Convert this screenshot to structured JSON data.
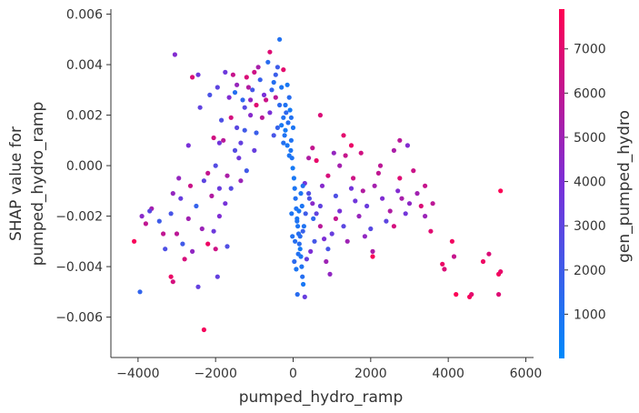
{
  "chart_data": {
    "type": "scatter",
    "title": "",
    "xlabel": "pumped_hydro_ramp",
    "ylabel_lines": [
      "SHAP value for",
      "pumped_hydro_ramp"
    ],
    "xlim": [
      -4700,
      6200
    ],
    "ylim": [
      -0.0076,
      0.0062
    ],
    "x_ticks": [
      -4000,
      -2000,
      0,
      2000,
      4000,
      6000
    ],
    "x_tick_labels": [
      "−4000",
      "−2000",
      "0",
      "2000",
      "4000",
      "6000"
    ],
    "y_ticks": [
      -0.006,
      -0.004,
      -0.002,
      0.0,
      0.002,
      0.004,
      0.006
    ],
    "y_tick_labels": [
      "−0.006",
      "−0.004",
      "−0.002",
      "0.000",
      "0.002",
      "0.004",
      "0.006"
    ],
    "grid": false,
    "colorbar": {
      "label": "gen_pumped_hydro",
      "min": 0,
      "max": 7900,
      "ticks": [
        1000,
        2000,
        3000,
        4000,
        5000,
        6000,
        7000
      ],
      "tick_labels": [
        "1000",
        "2000",
        "3000",
        "4000",
        "5000",
        "6000",
        "7000"
      ],
      "colormap": [
        "#008afb",
        "#ff0052"
      ]
    },
    "points": [
      [
        -3050,
        0.0044,
        4200
      ],
      [
        -2600,
        0.0035,
        6800
      ],
      [
        -2450,
        0.0036,
        3600
      ],
      [
        -2150,
        0.0028,
        2400
      ],
      [
        -1950,
        0.0031,
        3000
      ],
      [
        -2400,
        0.0023,
        3100
      ],
      [
        -1750,
        0.0037,
        3500
      ],
      [
        -1550,
        0.0036,
        6200
      ],
      [
        -1450,
        0.0032,
        4800
      ],
      [
        -1300,
        0.0026,
        1500
      ],
      [
        -1200,
        0.0035,
        6800
      ],
      [
        -1050,
        0.003,
        2200
      ],
      [
        -900,
        0.0039,
        5300
      ],
      [
        -850,
        0.0034,
        1800
      ],
      [
        -750,
        0.0028,
        3900
      ],
      [
        -650,
        0.0041,
        1300
      ],
      [
        -600,
        0.0045,
        6900
      ],
      [
        -500,
        0.0033,
        1200
      ],
      [
        -450,
        0.0027,
        5900
      ],
      [
        -400,
        0.0039,
        2000
      ],
      [
        -350,
        0.005,
        1100
      ],
      [
        -300,
        0.0031,
        900
      ],
      [
        -250,
        0.0038,
        7100
      ],
      [
        -200,
        0.0024,
        1000
      ],
      [
        -150,
        0.0032,
        800
      ],
      [
        -100,
        0.0027,
        1300
      ],
      [
        -50,
        0.0019,
        1100
      ],
      [
        0,
        0.0015,
        900
      ],
      [
        -80,
        0.0022,
        700
      ],
      [
        -130,
        0.0017,
        1200
      ],
      [
        -180,
        0.0021,
        1500
      ],
      [
        -220,
        0.0012,
        1000
      ],
      [
        -250,
        0.0009,
        1100
      ],
      [
        -300,
        0.0016,
        800
      ],
      [
        -60,
        0.0006,
        900
      ],
      [
        -30,
        0.0003,
        1000
      ],
      [
        -10,
        -0.0001,
        700
      ],
      [
        20,
        -0.0005,
        800
      ],
      [
        40,
        -0.0009,
        900
      ],
      [
        60,
        -0.0013,
        1100
      ],
      [
        80,
        -0.0017,
        1000
      ],
      [
        100,
        -0.0021,
        800
      ],
      [
        120,
        -0.0024,
        900
      ],
      [
        140,
        -0.0027,
        1200
      ],
      [
        160,
        -0.0031,
        1300
      ],
      [
        180,
        -0.0033,
        700
      ],
      [
        200,
        -0.0036,
        900
      ],
      [
        220,
        -0.004,
        1000
      ],
      [
        240,
        -0.0044,
        1200
      ],
      [
        260,
        -0.0047,
        800
      ],
      [
        30,
        -0.0038,
        1400
      ],
      [
        -20,
        -0.0028,
        1100
      ],
      [
        -40,
        -0.0019,
        900
      ],
      [
        110,
        -0.0051,
        1300
      ],
      [
        300,
        -0.0052,
        3300
      ],
      [
        -1800,
        0.001,
        5800
      ],
      [
        -1850,
        0.0018,
        2500
      ],
      [
        -1900,
        0.0009,
        3700
      ],
      [
        -2050,
        0.0011,
        6500
      ],
      [
        -1600,
        0.0019,
        6600
      ],
      [
        -1450,
        0.0015,
        2900
      ],
      [
        -1350,
        0.0009,
        3200
      ],
      [
        -1250,
        0.0014,
        2100
      ],
      [
        -1100,
        0.002,
        4300
      ],
      [
        -950,
        0.0013,
        1900
      ],
      [
        -2200,
        -0.0003,
        6100
      ],
      [
        -2000,
        0.0,
        2700
      ],
      [
        -1900,
        -0.0009,
        3400
      ],
      [
        -2100,
        -0.0012,
        5600
      ],
      [
        -2300,
        -0.0006,
        3000
      ],
      [
        -2500,
        -0.0016,
        1700
      ],
      [
        -2650,
        -0.0008,
        6300
      ],
      [
        -2700,
        -0.0021,
        5100
      ],
      [
        -2900,
        -0.0013,
        3300
      ],
      [
        -3100,
        -0.0011,
        4700
      ],
      [
        -3000,
        -0.0027,
        5900
      ],
      [
        -2850,
        -0.0031,
        2100
      ],
      [
        -2800,
        -0.0037,
        6700
      ],
      [
        -2600,
        -0.0034,
        4600
      ],
      [
        -2450,
        -0.0048,
        3200
      ],
      [
        -2200,
        -0.0031,
        7400
      ],
      [
        -2050,
        -0.0026,
        3500
      ],
      [
        -1900,
        -0.002,
        4100
      ],
      [
        -1750,
        -0.0015,
        3800
      ],
      [
        -1600,
        -0.0009,
        2800
      ],
      [
        -3300,
        -0.0033,
        2500
      ],
      [
        -3450,
        -0.0022,
        2000
      ],
      [
        -3650,
        -0.0017,
        5200
      ],
      [
        -3800,
        -0.0023,
        6000
      ],
      [
        -3900,
        -0.002,
        4400
      ],
      [
        -3950,
        -0.005,
        1600
      ],
      [
        -4100,
        -0.003,
        7700
      ],
      [
        -3150,
        -0.0044,
        7300
      ],
      [
        -3100,
        -0.0046,
        6600
      ],
      [
        -2300,
        -0.0065,
        7600
      ],
      [
        -2000,
        -0.0033,
        6400
      ],
      [
        -2350,
        -0.0025,
        4900
      ],
      [
        -1500,
        0.0006,
        2700
      ],
      [
        -1400,
        0.0003,
        3600
      ],
      [
        -1700,
        -0.0004,
        5400
      ],
      [
        300,
        -0.0007,
        3700
      ],
      [
        400,
        -0.0011,
        2600
      ],
      [
        500,
        -0.0015,
        4400
      ],
      [
        600,
        -0.0019,
        3100
      ],
      [
        700,
        -0.0024,
        5800
      ],
      [
        800,
        -0.0029,
        4000
      ],
      [
        900,
        -0.0033,
        2300
      ],
      [
        1000,
        -0.0027,
        3300
      ],
      [
        1100,
        -0.0021,
        6100
      ],
      [
        1200,
        -0.0018,
        3900
      ],
      [
        1300,
        -0.0024,
        2900
      ],
      [
        1400,
        -0.003,
        5000
      ],
      [
        1500,
        0.0008,
        7300
      ],
      [
        1550,
        -0.0005,
        6400
      ],
      [
        1600,
        -0.0014,
        3600
      ],
      [
        1700,
        -0.002,
        4800
      ],
      [
        1800,
        -0.001,
        5600
      ],
      [
        1900,
        -0.0016,
        3400
      ],
      [
        2000,
        -0.0025,
        2800
      ],
      [
        2100,
        -0.0008,
        5200
      ],
      [
        2200,
        -0.0003,
        6000
      ],
      [
        2300,
        -0.0013,
        4100
      ],
      [
        2400,
        -0.0022,
        3000
      ],
      [
        2500,
        -0.0018,
        5500
      ],
      [
        2600,
        -0.0024,
        6600
      ],
      [
        2700,
        -0.001,
        4200
      ],
      [
        2750,
        -0.0005,
        6900
      ],
      [
        2800,
        -0.0013,
        5300
      ],
      [
        2900,
        -0.0019,
        3700
      ],
      [
        3000,
        -0.0015,
        4500
      ],
      [
        3100,
        -0.0002,
        6300
      ],
      [
        3200,
        -0.0011,
        5100
      ],
      [
        3300,
        -0.0016,
        6800
      ],
      [
        3400,
        -0.002,
        4900
      ],
      [
        3550,
        -0.0026,
        7000
      ],
      [
        2750,
        0.001,
        5800
      ],
      [
        2950,
        0.0008,
        4200
      ],
      [
        1350,
        0.0004,
        6200
      ],
      [
        1200,
        0.0,
        5200
      ],
      [
        1050,
        0.0005,
        4700
      ],
      [
        900,
        -0.0004,
        6700
      ],
      [
        750,
        -0.0008,
        4300
      ],
      [
        600,
        0.0002,
        7200
      ],
      [
        500,
        0.0007,
        6100
      ],
      [
        400,
        0.0003,
        5500
      ],
      [
        3900,
        -0.0041,
        6800
      ],
      [
        3850,
        -0.0039,
        7300
      ],
      [
        4100,
        -0.003,
        7500
      ],
      [
        4150,
        -0.0036,
        6200
      ],
      [
        4200,
        -0.0051,
        7800
      ],
      [
        4550,
        -0.0052,
        7700
      ],
      [
        4600,
        -0.0051,
        7100
      ],
      [
        4900,
        -0.0038,
        7400
      ],
      [
        5050,
        -0.0035,
        6800
      ],
      [
        5300,
        -0.0043,
        7600
      ],
      [
        5350,
        -0.0042,
        7200
      ],
      [
        5300,
        -0.0051,
        6900
      ],
      [
        5350,
        -0.001,
        7800
      ],
      [
        3400,
        -0.0008,
        6200
      ],
      [
        3600,
        -0.0015,
        5900
      ],
      [
        2050,
        -0.0036,
        7700
      ],
      [
        2050,
        -0.0034,
        5400
      ],
      [
        1850,
        -0.0028,
        4600
      ],
      [
        1500,
        -0.0009,
        3700
      ],
      [
        1100,
        -0.0012,
        2500
      ],
      [
        700,
        -0.0016,
        3100
      ],
      [
        550,
        -0.003,
        2200
      ],
      [
        450,
        -0.0034,
        4000
      ],
      [
        350,
        -0.0037,
        3300
      ],
      [
        850,
        -0.0038,
        5000
      ],
      [
        950,
        -0.0043,
        4600
      ],
      [
        250,
        -0.0026,
        1800
      ],
      [
        320,
        -0.0019,
        2000
      ],
      [
        420,
        -0.0013,
        2400
      ],
      [
        520,
        -0.0021,
        1500
      ],
      [
        700,
        0.002,
        6800
      ],
      [
        1300,
        0.0012,
        7100
      ],
      [
        1750,
        0.0005,
        6500
      ],
      [
        2250,
        0.0,
        5900
      ],
      [
        2600,
        0.0006,
        5400
      ],
      [
        -600,
        0.0021,
        3900
      ],
      [
        -700,
        0.0026,
        6300
      ],
      [
        -800,
        0.0019,
        5800
      ],
      [
        -950,
        0.0024,
        7000
      ],
      [
        -1100,
        0.0026,
        4600
      ],
      [
        -500,
        0.0012,
        2300
      ],
      [
        -400,
        0.0015,
        1700
      ],
      [
        -350,
        0.0024,
        1400
      ],
      [
        -450,
        0.0036,
        1900
      ],
      [
        -550,
        0.003,
        1600
      ],
      [
        -1000,
        0.0037,
        6400
      ],
      [
        -1150,
        0.0031,
        5600
      ],
      [
        -1250,
        0.0023,
        2800
      ],
      [
        -1500,
        0.0029,
        1200
      ],
      [
        -1650,
        0.0027,
        4100
      ],
      [
        -2700,
        0.0008,
        3900
      ],
      [
        -2950,
        -0.0005,
        4700
      ],
      [
        -3150,
        -0.0019,
        2300
      ],
      [
        -3350,
        -0.0027,
        6000
      ],
      [
        -3700,
        -0.0018,
        2900
      ],
      [
        -1950,
        -0.0044,
        3200
      ],
      [
        -1700,
        -0.0032,
        2600
      ],
      [
        -1350,
        -0.0006,
        4900
      ],
      [
        -1200,
        -0.0002,
        2100
      ],
      [
        -1000,
        0.0006,
        3300
      ],
      [
        100,
        -0.0022,
        1000
      ],
      [
        150,
        -0.0018,
        800
      ],
      [
        200,
        -0.0011,
        900
      ],
      [
        250,
        -0.0008,
        1100
      ],
      [
        50,
        -0.003,
        1200
      ],
      [
        180,
        -0.0028,
        1300
      ],
      [
        230,
        -0.0016,
        900
      ],
      [
        280,
        -0.0024,
        1000
      ],
      [
        130,
        -0.0035,
        1100
      ],
      [
        80,
        -0.0041,
        900
      ],
      [
        -50,
        0.001,
        1000
      ],
      [
        -100,
        0.0004,
        900
      ],
      [
        -150,
        0.0008,
        800
      ],
      [
        -200,
        0.0014,
        700
      ],
      [
        -250,
        0.0019,
        1100
      ]
    ]
  }
}
